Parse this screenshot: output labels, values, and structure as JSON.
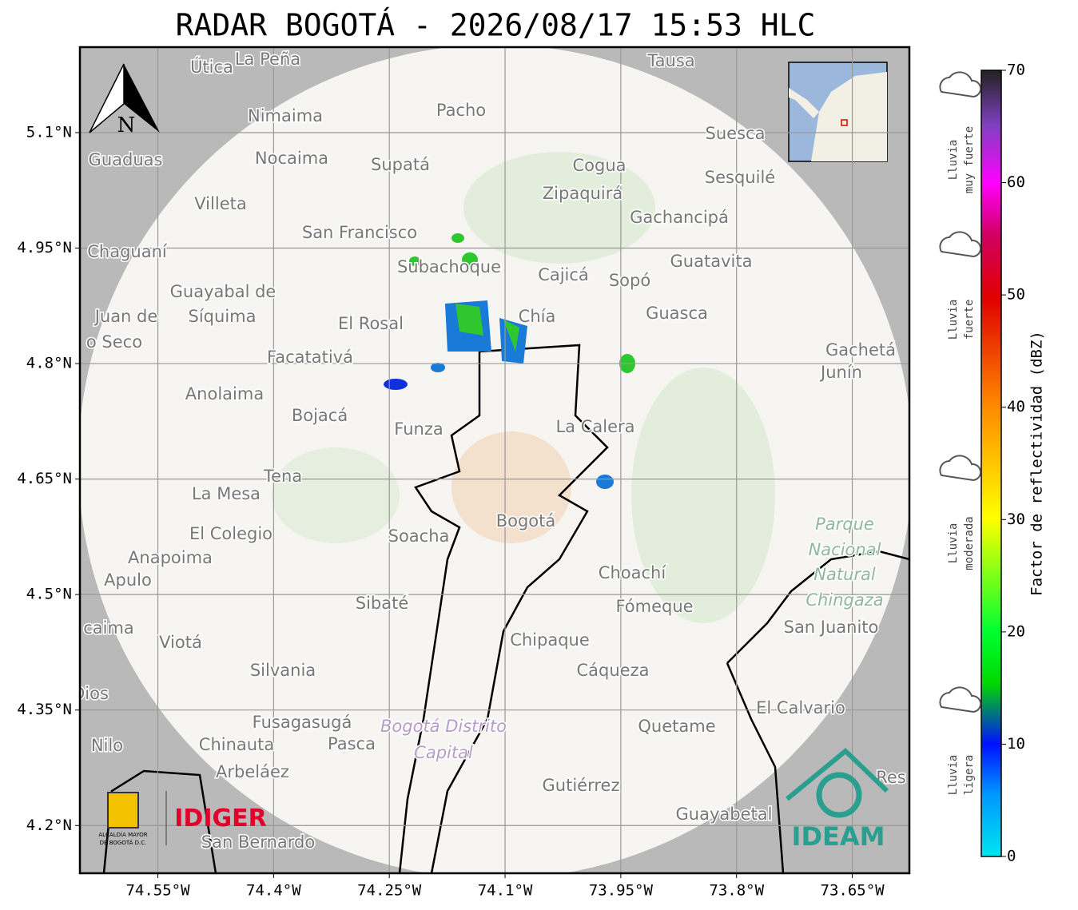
{
  "title": "RADAR BOGOTÁ - 2026/08/17 15:53 HLC",
  "map": {
    "xlim": [
      -74.651,
      -73.576
    ],
    "ylim": [
      4.138,
      5.211
    ],
    "xticks": [
      {
        "value": -74.55,
        "label": "74.55°W"
      },
      {
        "value": -74.4,
        "label": "74.4°W"
      },
      {
        "value": -74.25,
        "label": "74.25°W"
      },
      {
        "value": -74.1,
        "label": "74.1°W"
      },
      {
        "value": -73.95,
        "label": "73.95°W"
      },
      {
        "value": -73.8,
        "label": "73.8°W"
      },
      {
        "value": -73.65,
        "label": "73.65°W"
      }
    ],
    "yticks": [
      {
        "value": 5.1,
        "label": "5.1°N"
      },
      {
        "value": 4.95,
        "label": "4.95°N"
      },
      {
        "value": 4.8,
        "label": "4.8°N"
      },
      {
        "value": 4.65,
        "label": "4.65°N"
      },
      {
        "value": 4.5,
        "label": "4.5°N"
      },
      {
        "value": 4.35,
        "label": "4.35°N"
      },
      {
        "value": 4.2,
        "label": "4.2°N"
      }
    ],
    "north": "N",
    "places": [
      "Útica",
      "La Peña",
      "Tausa",
      "Pacho",
      "Nimaima",
      "Guaduas",
      "Nocaima",
      "Supatá",
      "Cogua",
      "Suesca",
      "Sesquilé",
      "Zipaquirá",
      "Villeta",
      "Gachancipá",
      "San Francisco",
      "Chaguaní",
      "Guatavita",
      "Subachoque",
      "Cajicá",
      "Sopó",
      "Guayabal de",
      "Síquima",
      "Chía",
      "Guasca",
      "El Rosal",
      "Juan de",
      "o Seco",
      "Facatativá",
      "Gachetá",
      "Junín",
      "Anolaima",
      "Bojacá",
      "La Calera",
      "Funza",
      "Tena",
      "La Mesa",
      "Soacha",
      "Bogotá",
      "El Colegio",
      "Parque",
      "Nacional",
      "Natural",
      "Chingaza",
      "Anapoima",
      "Apulo",
      "Choachí",
      "Sibaté",
      "Fómeque",
      "San Juanito",
      "caima",
      "Viotá",
      "Chipaque",
      "Silvania",
      "Cáqueza",
      "Dios",
      "El Calvario",
      "Fusagasugá",
      "Quetame",
      "Bogotá Distrito",
      "Capital",
      "Nilo",
      "Chinauta",
      "Pasca",
      "Arbeláez",
      "Gutiérrez",
      "Res",
      "Guayabetal",
      "San Bernardo"
    ]
  },
  "colorbar": {
    "label": "Factor de reflectividad (dBZ)",
    "lim": [
      0,
      70
    ],
    "ticks": [
      0,
      10,
      20,
      30,
      40,
      50,
      60,
      70
    ]
  },
  "legend": [
    [
      "Lluvia",
      "muy fuerte"
    ],
    [
      "Lluvia",
      "fuerte"
    ],
    [
      "Lluvia",
      "moderada"
    ],
    [
      "Lluvia",
      "ligera"
    ]
  ],
  "logos": {
    "alcaldia": [
      "ALCALDÍA MAYOR",
      "DE BOGOTÁ D.C."
    ],
    "idiger": "IDIGER",
    "ideam": "IDEAM"
  }
}
